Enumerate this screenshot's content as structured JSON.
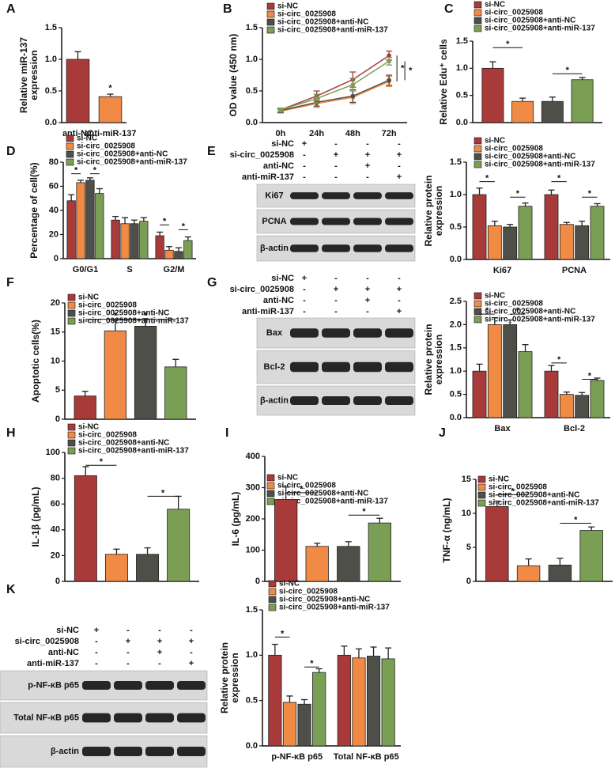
{
  "chart_data": [
    {
      "label": "A",
      "type": "bar",
      "ylabel": [
        "Relative miR-137",
        "expression"
      ],
      "categories": [
        "anti-NC",
        "anti-miR-137"
      ],
      "values": [
        1.0,
        0.41
      ],
      "errors": [
        0.12,
        0.04
      ],
      "colors": [
        "#a83a3a",
        "#f08a45"
      ],
      "ylim": [
        0,
        1.5
      ],
      "yticks": [
        {
          "value": 0,
          "label": "0.0"
        },
        0.5,
        {
          "value": 1,
          "label": "1.0"
        },
        1.5
      ],
      "annotations": [
        "*"
      ]
    },
    {
      "label": "B",
      "type": "line",
      "ylabel": [
        "OD value (450 nm)"
      ],
      "categories": [
        "0h",
        "24h",
        "48h",
        "72h"
      ],
      "ylim": [
        0,
        1.5
      ],
      "yticks": [
        {
          "value": 0,
          "label": "0.0"
        },
        0.5,
        {
          "value": 1,
          "label": "1.0"
        },
        1.5
      ],
      "series": [
        {
          "name": "si-NC",
          "color": "#a83a3a",
          "values": [
            0.2,
            0.42,
            0.68,
            1.06
          ],
          "errors": [
            0.03,
            0.08,
            0.12,
            0.07
          ]
        },
        {
          "name": "si-circ_0025908",
          "color": "#f08a45",
          "values": [
            0.18,
            0.3,
            0.4,
            0.65
          ],
          "errors": [
            0.03,
            0.06,
            0.1,
            0.08
          ]
        },
        {
          "name": "si-circ_0025908+anti-NC",
          "color": "#4f4f4a",
          "values": [
            0.19,
            0.32,
            0.42,
            0.67
          ],
          "errors": [
            0.03,
            0.06,
            0.1,
            0.08
          ]
        },
        {
          "name": "si-circ_0025908+anti-miR-137",
          "color": "#7b9e55",
          "values": [
            0.2,
            0.38,
            0.6,
            0.97
          ],
          "errors": [
            0.03,
            0.07,
            0.1,
            0.06
          ]
        }
      ],
      "annotations": [
        "*",
        "*"
      ]
    },
    {
      "label": "C",
      "type": "bar",
      "ylabel": [
        "Relative Edu⁺ cells"
      ],
      "ylim": [
        0,
        1.5
      ],
      "yticks": [
        {
          "value": 0,
          "label": "0.0"
        },
        0.5,
        {
          "value": 1,
          "label": "1.0"
        },
        1.5
      ],
      "series": [
        {
          "name": "si-NC",
          "color": "#a83a3a",
          "values": [
            1.0
          ],
          "errors": [
            0.12
          ]
        },
        {
          "name": "si-circ_0025908",
          "color": "#f08a45",
          "values": [
            0.39
          ],
          "errors": [
            0.06
          ]
        },
        {
          "name": "si-circ_0025908+anti-NC",
          "color": "#4f4f4a",
          "values": [
            0.39
          ],
          "errors": [
            0.08
          ]
        },
        {
          "name": "si-circ_0025908+anti-miR-137",
          "color": "#7b9e55",
          "values": [
            0.79
          ],
          "errors": [
            0.04
          ]
        }
      ],
      "annotations": [
        "*",
        "*"
      ]
    },
    {
      "label": "D",
      "type": "bar",
      "ylabel": [
        "Percentage of cell(%)"
      ],
      "categories": [
        "G0/G1",
        "S",
        "G2/M"
      ],
      "ylim": [
        0,
        80
      ],
      "yticks": [
        0,
        20,
        40,
        60,
        80
      ],
      "series": [
        {
          "name": "si-NC",
          "color": "#a83a3a",
          "values": [
            48,
            32,
            19
          ],
          "errors": [
            5,
            3,
            3
          ]
        },
        {
          "name": "si-circ_0025908",
          "color": "#f08a45",
          "values": [
            63,
            29,
            7
          ],
          "errors": [
            2,
            5,
            3
          ]
        },
        {
          "name": "si-circ_0025908+anti-NC",
          "color": "#4f4f4a",
          "values": [
            65,
            29,
            6
          ],
          "errors": [
            2,
            3,
            3
          ]
        },
        {
          "name": "si-circ_0025908+anti-miR-137",
          "color": "#7b9e55",
          "values": [
            54,
            31,
            15
          ],
          "errors": [
            4,
            3,
            3
          ]
        }
      ],
      "annotations": [
        "*",
        "*",
        "*",
        "*"
      ]
    },
    {
      "type": "bar",
      "ylabel": [
        "Relative protein",
        "expression"
      ],
      "categories": [
        "Ki67",
        "PCNA"
      ],
      "ylim": [
        0,
        1.5
      ],
      "yticks": [
        {
          "value": 0,
          "label": "0.0"
        },
        0.5,
        {
          "value": 1,
          "label": "1.0"
        },
        1.5
      ],
      "series": [
        {
          "name": "si-NC",
          "color": "#a83a3a",
          "values": [
            1.0,
            1.0
          ],
          "errors": [
            0.1,
            0.07
          ]
        },
        {
          "name": "si-circ_0025908",
          "color": "#f08a45",
          "values": [
            0.52,
            0.54
          ],
          "errors": [
            0.07,
            0.03
          ]
        },
        {
          "name": "si-circ_0025908+anti-NC",
          "color": "#4f4f4a",
          "values": [
            0.5,
            0.52
          ],
          "errors": [
            0.04,
            0.07
          ]
        },
        {
          "name": "si-circ_0025908+anti-miR-137",
          "color": "#7b9e55",
          "values": [
            0.82,
            0.82
          ],
          "errors": [
            0.05,
            0.04
          ]
        }
      ],
      "annotations": [
        "*",
        "*",
        "*",
        "*"
      ]
    },
    {
      "label": "F",
      "type": "bar",
      "ylabel": [
        "Apoptotic cells(%)"
      ],
      "ylim": [
        0,
        20
      ],
      "yticks": [
        0,
        5,
        10,
        15,
        20
      ],
      "series": [
        {
          "name": "si-NC",
          "color": "#a83a3a",
          "values": [
            4.0
          ],
          "errors": [
            0.8
          ]
        },
        {
          "name": "si-circ_0025908",
          "color": "#f08a45",
          "values": [
            15.2
          ],
          "errors": [
            1.8
          ]
        },
        {
          "name": "si-circ_0025908+anti-NC",
          "color": "#4f4f4a",
          "values": [
            16.0
          ],
          "errors": [
            1.3
          ]
        },
        {
          "name": "si-circ_0025908+anti-miR-137",
          "color": "#7b9e55",
          "values": [
            9.0
          ],
          "errors": [
            1.3
          ]
        }
      ],
      "annotations": [
        "*",
        "*"
      ]
    },
    {
      "type": "bar",
      "ylabel": [
        "Relative protein",
        "expression"
      ],
      "categories": [
        "Bax",
        "Bcl-2"
      ],
      "ylim": [
        0,
        2.5
      ],
      "yticks": [
        {
          "value": 0,
          "label": "0.0"
        },
        0.5,
        {
          "value": 1,
          "label": "1.0"
        },
        1.5,
        {
          "value": 2,
          "label": "2.0"
        },
        2.5
      ],
      "series": [
        {
          "name": "si-NC",
          "color": "#a83a3a",
          "values": [
            1.0,
            1.0
          ],
          "errors": [
            0.15,
            0.12
          ]
        },
        {
          "name": "si-circ_0025908",
          "color": "#f08a45",
          "values": [
            2.0,
            0.5
          ],
          "errors": [
            0.15,
            0.05
          ]
        },
        {
          "name": "si-circ_0025908+anti-NC",
          "color": "#4f4f4a",
          "values": [
            2.0,
            0.48
          ],
          "errors": [
            0.1,
            0.06
          ]
        },
        {
          "name": "si-circ_0025908+anti-miR-137",
          "color": "#7b9e55",
          "values": [
            1.42,
            0.8
          ],
          "errors": [
            0.15,
            0.05
          ]
        }
      ],
      "annotations": [
        "*",
        "*",
        "*",
        "*"
      ]
    },
    {
      "label": "H",
      "type": "bar",
      "ylabel": [
        "IL-1β (pg/mL)"
      ],
      "ylim": [
        0,
        100
      ],
      "yticks": [
        0,
        20,
        40,
        60,
        80,
        100
      ],
      "series": [
        {
          "name": "si-NC",
          "color": "#a83a3a",
          "values": [
            82
          ],
          "errors": [
            7
          ]
        },
        {
          "name": "si-circ_0025908",
          "color": "#f08a45",
          "values": [
            21
          ],
          "errors": [
            4
          ]
        },
        {
          "name": "si-circ_0025908+anti-NC",
          "color": "#4f4f4a",
          "values": [
            21
          ],
          "errors": [
            5
          ]
        },
        {
          "name": "si-circ_0025908+anti-miR-137",
          "color": "#7b9e55",
          "values": [
            56
          ],
          "errors": [
            10
          ]
        }
      ],
      "annotations": [
        "*",
        "*"
      ]
    },
    {
      "label": "I",
      "type": "bar",
      "ylabel": [
        "IL-6 (pg/mL)"
      ],
      "ylim": [
        0,
        400
      ],
      "yticks": [
        0,
        100,
        200,
        300,
        400
      ],
      "series": [
        {
          "name": "si-NC",
          "color": "#a83a3a",
          "values": [
            262
          ],
          "errors": [
            40
          ]
        },
        {
          "name": "si-circ_0025908",
          "color": "#f08a45",
          "values": [
            112
          ],
          "errors": [
            10
          ]
        },
        {
          "name": "si-circ_0025908+anti-NC",
          "color": "#4f4f4a",
          "values": [
            112
          ],
          "errors": [
            15
          ]
        },
        {
          "name": "si-circ_0025908+anti-miR-137",
          "color": "#7b9e55",
          "values": [
            187
          ],
          "errors": [
            15
          ]
        }
      ],
      "annotations": [
        "*",
        "*"
      ]
    },
    {
      "label": "J",
      "type": "bar",
      "ylabel": [
        "TNF-α (ng/mL)"
      ],
      "ylim": [
        0,
        15
      ],
      "yticks": [
        0,
        5,
        10,
        15
      ],
      "series": [
        {
          "name": "si-NC",
          "color": "#a83a3a",
          "values": [
            11
          ],
          "errors": [
            0.8
          ]
        },
        {
          "name": "si-circ_0025908",
          "color": "#f08a45",
          "values": [
            2.3
          ],
          "errors": [
            1.0
          ]
        },
        {
          "name": "si-circ_0025908+anti-NC",
          "color": "#4f4f4a",
          "values": [
            2.4
          ],
          "errors": [
            1.0
          ]
        },
        {
          "name": "si-circ_0025908+anti-miR-137",
          "color": "#7b9e55",
          "values": [
            7.5
          ],
          "errors": [
            0.5
          ]
        }
      ],
      "annotations": [
        "*",
        "*"
      ]
    },
    {
      "type": "bar",
      "ylabel": [
        "Relative protein",
        "expression"
      ],
      "categories": [
        "p-NF-κB p65",
        "Total NF-κB p65"
      ],
      "ylim": [
        0,
        1.5
      ],
      "yticks": [
        {
          "value": 0,
          "label": "0.0"
        },
        0.5,
        {
          "value": 1,
          "label": "1.0"
        },
        1.5
      ],
      "series": [
        {
          "name": "si-NC",
          "color": "#a83a3a",
          "values": [
            1.0,
            1.0
          ],
          "errors": [
            0.12,
            0.1
          ]
        },
        {
          "name": "si-circ_0025908",
          "color": "#f08a45",
          "values": [
            0.48,
            0.97
          ],
          "errors": [
            0.07,
            0.1
          ]
        },
        {
          "name": "si-circ_0025908+anti-NC",
          "color": "#4f4f4a",
          "values": [
            0.46,
            0.99
          ],
          "errors": [
            0.05,
            0.1
          ]
        },
        {
          "name": "si-circ_0025908+anti-miR-137",
          "color": "#7b9e55",
          "values": [
            0.81,
            0.96
          ],
          "errors": [
            0.04,
            0.12
          ]
        }
      ],
      "annotations": [
        "*",
        "*",
        "*",
        "*"
      ]
    }
  ],
  "blots": [
    {
      "label": "E",
      "treatments": [
        {
          "name": "si-NC",
          "signs": [
            "+",
            "-",
            "-",
            "-"
          ]
        },
        {
          "name": "si-circ_0025908",
          "signs": [
            "-",
            "+",
            "+",
            "+"
          ]
        },
        {
          "name": "anti-NC",
          "signs": [
            "-",
            "-",
            "+",
            "-"
          ]
        },
        {
          "name": "anti-miR-137",
          "signs": [
            "-",
            "-",
            "-",
            "+"
          ]
        }
      ],
      "bands": [
        "Ki67",
        "PCNA",
        "β-actin"
      ]
    },
    {
      "label": "G",
      "treatments": [
        {
          "name": "si-NC",
          "signs": [
            "+",
            "-",
            "-",
            "-"
          ]
        },
        {
          "name": "si-circ_0025908",
          "signs": [
            "-",
            "+",
            "+",
            "+"
          ]
        },
        {
          "name": "anti-NC",
          "signs": [
            "-",
            "-",
            "+",
            "-"
          ]
        },
        {
          "name": "anti-miR-137",
          "signs": [
            "-",
            "-",
            "-",
            "+"
          ]
        }
      ],
      "bands": [
        "Bax",
        "Bcl-2",
        "β-actin"
      ]
    },
    {
      "label": "K",
      "treatments": [
        {
          "name": "si-NC",
          "signs": [
            "+",
            "-",
            "-",
            "-"
          ]
        },
        {
          "name": "si-circ_0025908",
          "signs": [
            "-",
            "+",
            "+",
            "+"
          ]
        },
        {
          "name": "anti-NC",
          "signs": [
            "-",
            "-",
            "+",
            "-"
          ]
        },
        {
          "name": "anti-miR-137",
          "signs": [
            "-",
            "-",
            "-",
            "+"
          ]
        }
      ],
      "bands": [
        "p-NF-κB p65",
        "Total NF-κB p65",
        "β-actin"
      ]
    }
  ]
}
